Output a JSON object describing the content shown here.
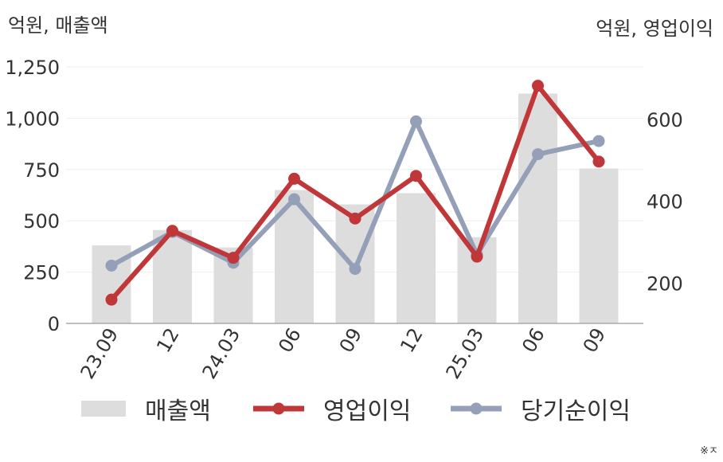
{
  "units": {
    "left": "억원, 매출액",
    "right": "억원, 영업이익"
  },
  "note": "※ㅈ",
  "colors": {
    "bar": "#dddddd",
    "operating": "#c0373a",
    "net": "#94a0b8",
    "axis": "#aaaaaa",
    "grid": "#eeeeee",
    "text": "#333333"
  },
  "chart_data": {
    "type": "bar+line",
    "categories": [
      "23.09",
      "12",
      "24.03",
      "06",
      "09",
      "12",
      "25.03",
      "06",
      "09"
    ],
    "y_left": {
      "min": 0,
      "max": 1250,
      "ticks": [
        0,
        250,
        500,
        750,
        "1,000",
        "1,250"
      ]
    },
    "y_right": {
      "min": 135,
      "max": 765,
      "ticks": [
        200,
        400,
        600
      ]
    },
    "grid": true,
    "legend_position": "bottom",
    "series": [
      {
        "name": "매출액",
        "type": "bar",
        "axis": "left",
        "values": [
          380,
          455,
          370,
          650,
          580,
          635,
          420,
          1120,
          755
        ]
      },
      {
        "name": "영업이익",
        "type": "line",
        "axis": "right",
        "values": [
          160,
          328,
          262,
          455,
          358,
          462,
          265,
          682,
          497
        ]
      },
      {
        "name": "당기순이익",
        "type": "line",
        "axis": "right",
        "values": [
          243,
          325,
          250,
          405,
          235,
          595,
          270,
          515,
          547
        ]
      }
    ]
  }
}
